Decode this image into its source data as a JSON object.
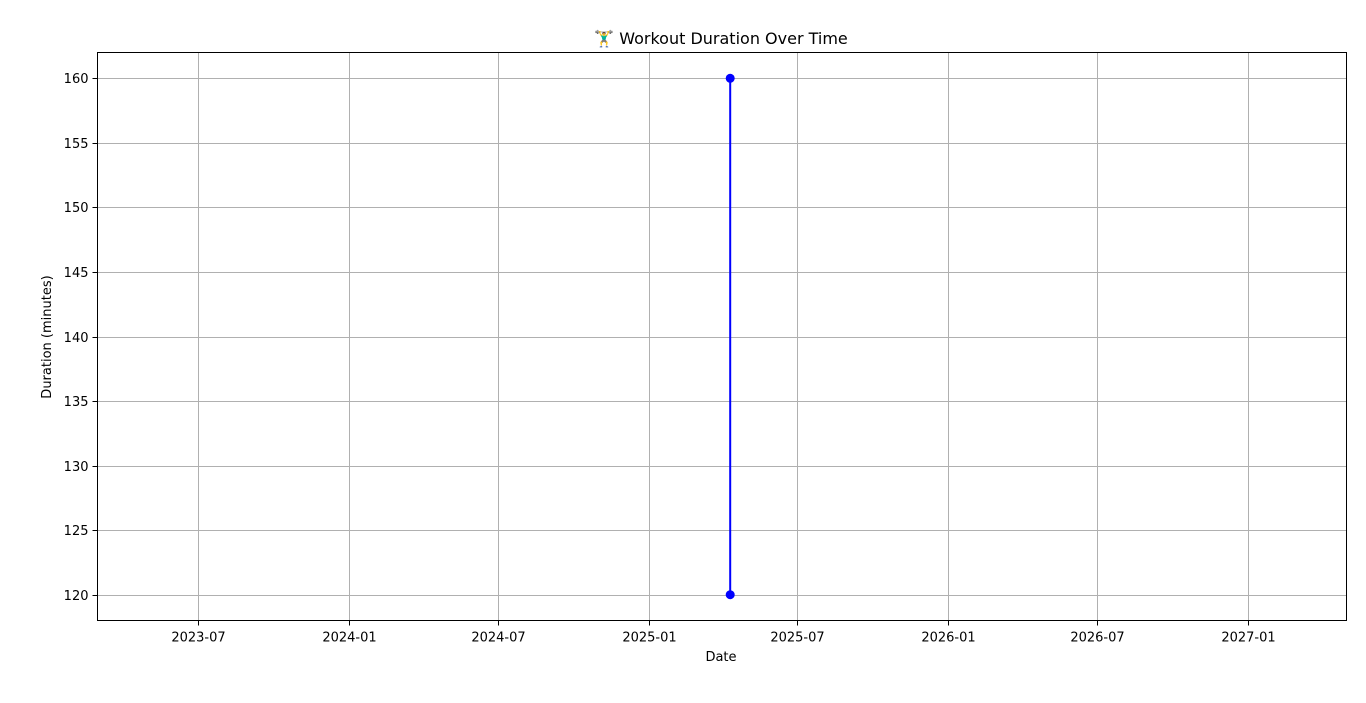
{
  "chart_data": {
    "type": "line",
    "title": "🏋️‍♂️ Workout Duration Over Time",
    "xlabel": "Date",
    "ylabel": "Duration (minutes)",
    "x_axis_type": "date",
    "xlim": [
      "2023-03-01",
      "2027-05-01"
    ],
    "ylim": [
      118,
      162
    ],
    "x_ticks": [
      "2023-07",
      "2024-01",
      "2024-07",
      "2025-01",
      "2025-07",
      "2026-01",
      "2026-07",
      "2027-01"
    ],
    "y_ticks": [
      120,
      125,
      130,
      135,
      140,
      145,
      150,
      155,
      160
    ],
    "grid": true,
    "series": [
      {
        "color": "#0000ff",
        "marker": "circle",
        "points": [
          {
            "x": "2025-04-10",
            "y": 120
          },
          {
            "x": "2025-04-10",
            "y": 160
          }
        ]
      }
    ]
  }
}
